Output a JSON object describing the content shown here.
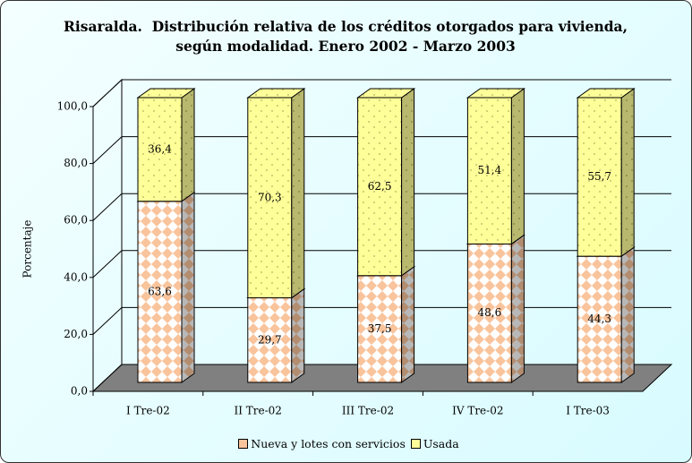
{
  "chart_data": {
    "type": "bar",
    "stacked": true,
    "title": "Risaralda.  Distribución relativa de los créditos otorgados para vivienda, según modalidad. Enero 2002 - Marzo 2003",
    "ylabel": "Porcentaje",
    "categories": [
      "I Tre-02",
      "II Tre-02",
      "III Tre-02",
      "IV Tre-02",
      "I Tre-03"
    ],
    "series": [
      {
        "name": "Nueva y lotes con servicios",
        "color": "#f9c49c",
        "values": [
          63.6,
          29.7,
          37.5,
          48.6,
          44.3
        ],
        "value_labels": [
          "63,6",
          "29,7",
          "37,5",
          "48,6",
          "44,3"
        ]
      },
      {
        "name": "Usada",
        "color": "#ffff99",
        "values": [
          36.4,
          70.3,
          62.5,
          51.4,
          55.7
        ],
        "value_labels": [
          "36,4",
          "70,3",
          "62,5",
          "51,4",
          "55,7"
        ]
      }
    ],
    "ylim": [
      0,
      100
    ],
    "yticks": [
      {
        "value": 0,
        "label": "0,0"
      },
      {
        "value": 20,
        "label": "20,0"
      },
      {
        "value": 40,
        "label": "40,0"
      },
      {
        "value": 60,
        "label": "60,0"
      },
      {
        "value": 80,
        "label": "80,0"
      },
      {
        "value": 100,
        "label": "100,0"
      }
    ],
    "grid": true,
    "legend": "bottom"
  }
}
